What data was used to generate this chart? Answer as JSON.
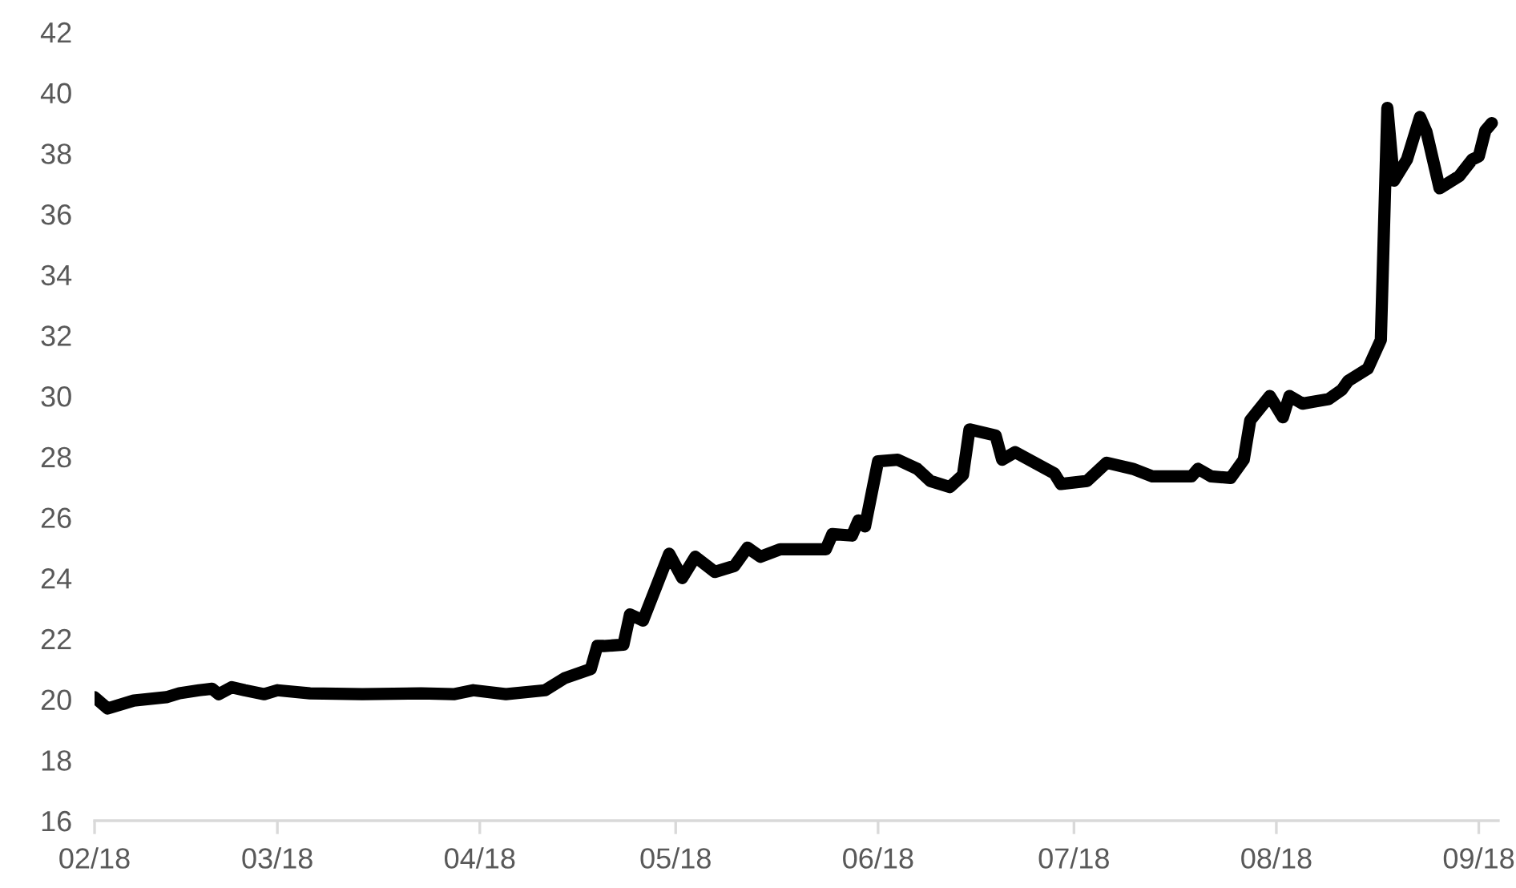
{
  "chart_data": {
    "type": "line",
    "x": [
      "2018-02-01",
      "2018-02-03",
      "2018-02-07",
      "2018-02-12",
      "2018-02-14",
      "2018-02-17",
      "2018-02-19",
      "2018-02-20",
      "2018-02-22",
      "2018-02-24",
      "2018-02-27",
      "2018-03-01",
      "2018-03-06",
      "2018-03-14",
      "2018-03-23",
      "2018-03-28",
      "2018-03-31",
      "2018-04-05",
      "2018-04-11",
      "2018-04-14",
      "2018-04-18",
      "2018-04-19",
      "2018-04-20",
      "2018-04-23",
      "2018-04-24",
      "2018-04-26",
      "2018-04-30",
      "2018-05-02",
      "2018-05-04",
      "2018-05-07",
      "2018-05-10",
      "2018-05-12",
      "2018-05-14",
      "2018-05-17",
      "2018-05-24",
      "2018-05-25",
      "2018-05-28",
      "2018-05-29",
      "2018-05-30",
      "2018-06-01",
      "2018-06-04",
      "2018-06-07",
      "2018-06-09",
      "2018-06-12",
      "2018-06-14",
      "2018-06-15",
      "2018-06-19",
      "2018-06-20",
      "2018-06-22",
      "2018-06-28",
      "2018-06-29",
      "2018-07-03",
      "2018-07-06",
      "2018-07-10",
      "2018-07-13",
      "2018-07-19",
      "2018-07-20",
      "2018-07-22",
      "2018-07-25",
      "2018-07-27",
      "2018-07-28",
      "2018-07-31",
      "2018-08-02",
      "2018-08-03",
      "2018-08-05",
      "2018-08-09",
      "2018-08-11",
      "2018-08-12",
      "2018-08-15",
      "2018-08-17",
      "2018-08-18",
      "2018-08-19",
      "2018-08-21",
      "2018-08-23",
      "2018-08-24",
      "2018-08-26",
      "2018-08-29",
      "2018-08-31",
      "2018-09-01",
      "2018-09-02",
      "2018-09-03"
    ],
    "series": [
      {
        "color": "#000000",
        "values": [
          20.07,
          19.7,
          19.96,
          20.07,
          20.2,
          20.3,
          20.35,
          20.17,
          20.4,
          20.3,
          20.17,
          20.3,
          20.2,
          20.17,
          20.2,
          20.17,
          20.3,
          20.17,
          20.3,
          20.7,
          21.0,
          21.76,
          21.76,
          21.8,
          22.8,
          22.6,
          24.8,
          24.0,
          24.7,
          24.2,
          24.4,
          25.0,
          24.7,
          24.95,
          24.95,
          25.45,
          25.4,
          25.9,
          25.7,
          27.85,
          27.9,
          27.6,
          27.2,
          27.0,
          27.4,
          28.9,
          28.7,
          27.9,
          28.15,
          27.45,
          27.1,
          27.2,
          27.8,
          27.6,
          27.35,
          27.35,
          27.6,
          27.35,
          27.3,
          27.9,
          29.2,
          30.0,
          29.3,
          30.0,
          29.75,
          29.9,
          30.2,
          30.5,
          30.9,
          31.85,
          39.5,
          37.1,
          37.8,
          39.2,
          38.7,
          36.85,
          37.25,
          37.8,
          37.9,
          38.75,
          39.0
        ]
      }
    ],
    "xlim": [
      "2018-02-01",
      "2018-09-04"
    ],
    "xticks": [
      {
        "value": "2018-02-01",
        "label": "02/18"
      },
      {
        "value": "2018-03-01",
        "label": "03/18"
      },
      {
        "value": "2018-04-01",
        "label": "04/18"
      },
      {
        "value": "2018-05-01",
        "label": "05/18"
      },
      {
        "value": "2018-06-01",
        "label": "06/18"
      },
      {
        "value": "2018-07-01",
        "label": "07/18"
      },
      {
        "value": "2018-08-01",
        "label": "08/18"
      },
      {
        "value": "2018-09-01",
        "label": "09/18"
      }
    ],
    "ylim": [
      16,
      42
    ],
    "yticks": [
      16,
      18,
      20,
      22,
      24,
      26,
      28,
      30,
      32,
      34,
      36,
      38,
      40,
      42
    ],
    "grid": false,
    "legend": false,
    "marker": "none",
    "line_style": "solid"
  }
}
